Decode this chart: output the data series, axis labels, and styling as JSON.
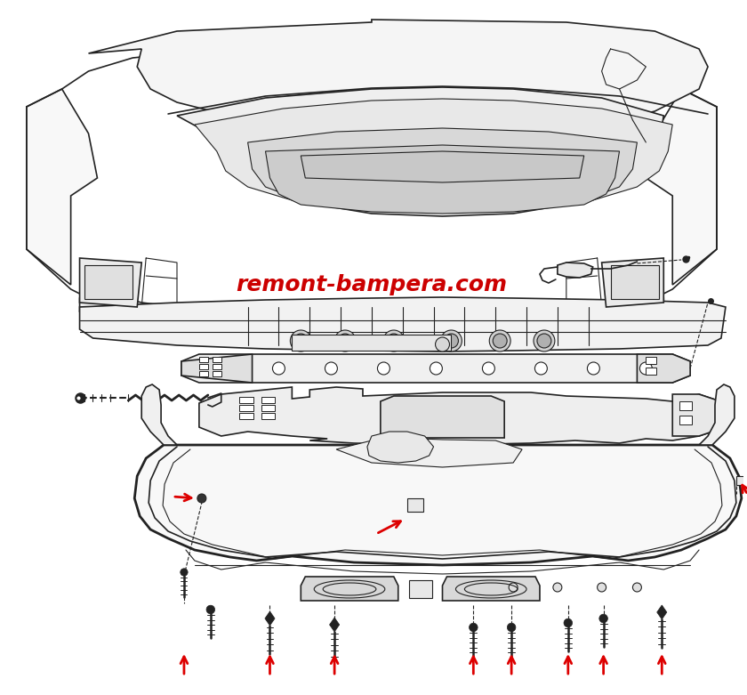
{
  "watermark_text": "remont-bampera.com",
  "watermark_color": "#cc0000",
  "watermark_fontsize": 18,
  "background_color": "#ffffff",
  "fig_width": 8.4,
  "fig_height": 7.81,
  "dpi": 100,
  "red_color": "#dd0000",
  "line_color": "#222222",
  "line_color_light": "#555555"
}
